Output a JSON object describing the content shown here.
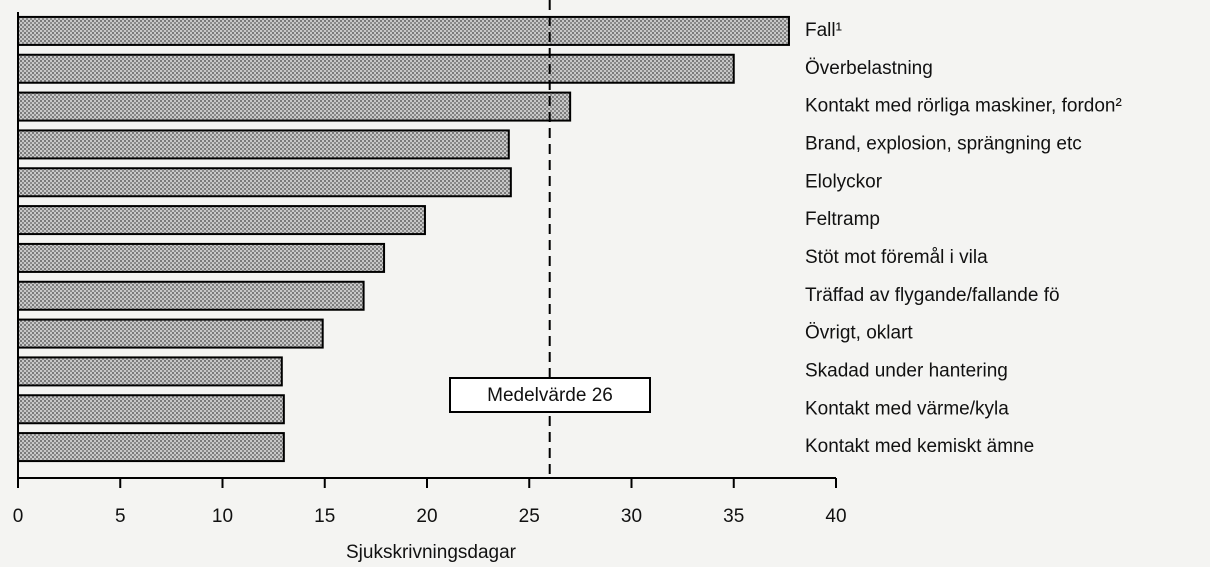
{
  "chart_data": {
    "type": "barh",
    "categories": [
      "Fall¹",
      "Överbelastning",
      "Kontakt med rörliga maskiner, fordon²",
      "Brand, explosion, sprängning etc",
      "Elolyckor",
      "Feltramp",
      "Stöt mot föremål i vila",
      "Träffad av flygande/fallande fö",
      "Övrigt, oklart",
      "Skadad under hantering",
      "Kontakt med värme/kyla",
      "Kontakt med kemiskt ämne"
    ],
    "values": [
      37.7,
      35,
      27,
      24,
      24.1,
      19.9,
      17.9,
      16.9,
      14.9,
      12.9,
      13,
      13
    ],
    "color": "#a8a8a8",
    "xlabel": "Sjukskrivningsdagar",
    "xlim": [
      0,
      40
    ],
    "xticks": [
      0,
      5,
      10,
      15,
      20,
      25,
      30,
      35,
      40
    ],
    "mean_line": 26,
    "annotation": "Medelvärde 26"
  }
}
